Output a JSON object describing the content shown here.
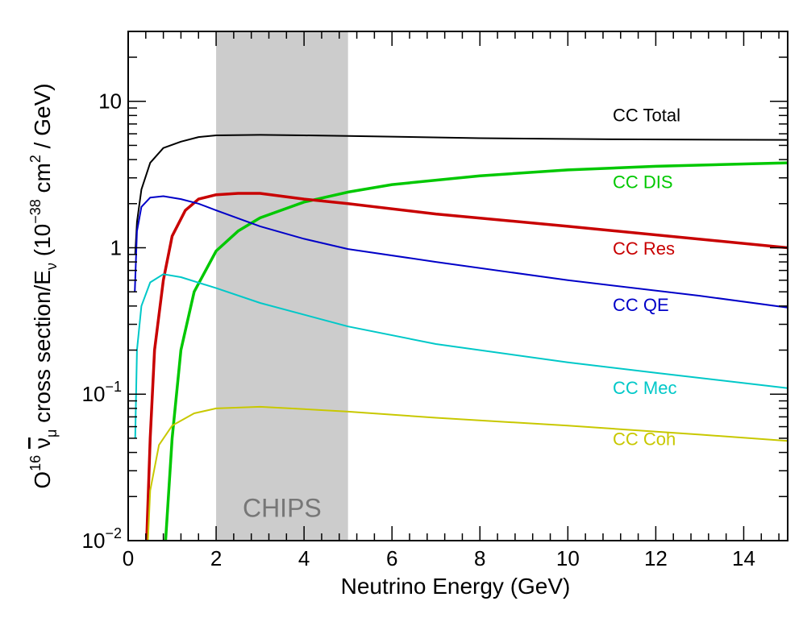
{
  "chart_data": {
    "type": "line",
    "xlabel": "Neutrino Energy (GeV)",
    "ylabel": {
      "main": "O",
      "sup1": "16",
      "nu": "ν",
      "nu_sub": "μ",
      "mid": " cross section/E",
      "e_sub": "ν",
      "units_a": " (10",
      "sup2": "−38",
      "units_b": " cm",
      "sup3": "2",
      "units_c": " / GeV)"
    },
    "xlim": [
      0,
      15
    ],
    "ylim": [
      0.01,
      30
    ],
    "yscale": "log",
    "grid": false,
    "x_ticks": [
      "0",
      "2",
      "4",
      "6",
      "8",
      "10",
      "12",
      "14"
    ],
    "y_ticks": [
      {
        "base": "10",
        "exp": "−2",
        "value": 0.01
      },
      {
        "base": "10",
        "exp": "−1",
        "value": 0.1
      },
      {
        "base": "1",
        "exp": "",
        "value": 1
      },
      {
        "base": "10",
        "exp": "",
        "value": 10
      }
    ],
    "band": {
      "label": "CHIPS",
      "x_range": [
        2,
        5
      ],
      "color": "#cccccc"
    },
    "series": [
      {
        "name": "CC Total",
        "color": "#000000",
        "width": 2,
        "points": [
          [
            0.16,
            0.9
          ],
          [
            0.2,
            1.5
          ],
          [
            0.3,
            2.5
          ],
          [
            0.5,
            3.8
          ],
          [
            0.8,
            4.8
          ],
          [
            1.2,
            5.3
          ],
          [
            1.6,
            5.7
          ],
          [
            2,
            5.85
          ],
          [
            3,
            5.9
          ],
          [
            4,
            5.85
          ],
          [
            5,
            5.8
          ],
          [
            8,
            5.6
          ],
          [
            11,
            5.5
          ],
          [
            15,
            5.45
          ]
        ]
      },
      {
        "name": "CC DIS",
        "color": "#00c800",
        "width": 3.5,
        "points": [
          [
            0.85,
            0.01
          ],
          [
            1.0,
            0.05
          ],
          [
            1.2,
            0.2
          ],
          [
            1.5,
            0.5
          ],
          [
            2,
            0.95
          ],
          [
            2.5,
            1.3
          ],
          [
            3,
            1.6
          ],
          [
            4,
            2.05
          ],
          [
            5,
            2.4
          ],
          [
            6,
            2.7
          ],
          [
            8,
            3.1
          ],
          [
            10,
            3.4
          ],
          [
            12,
            3.6
          ],
          [
            15,
            3.8
          ]
        ]
      },
      {
        "name": "CC Res",
        "color": "#c80000",
        "width": 3.5,
        "points": [
          [
            0.42,
            0.01
          ],
          [
            0.5,
            0.05
          ],
          [
            0.6,
            0.2
          ],
          [
            0.8,
            0.6
          ],
          [
            1.0,
            1.2
          ],
          [
            1.3,
            1.8
          ],
          [
            1.6,
            2.15
          ],
          [
            2,
            2.3
          ],
          [
            2.5,
            2.35
          ],
          [
            3,
            2.35
          ],
          [
            4,
            2.15
          ],
          [
            5,
            2.0
          ],
          [
            7,
            1.7
          ],
          [
            10,
            1.4
          ],
          [
            15,
            1.0
          ]
        ]
      },
      {
        "name": "CC QE",
        "color": "#0000c8",
        "width": 2,
        "points": [
          [
            0.15,
            0.5
          ],
          [
            0.2,
            1.3
          ],
          [
            0.3,
            1.9
          ],
          [
            0.5,
            2.2
          ],
          [
            0.8,
            2.25
          ],
          [
            1.2,
            2.15
          ],
          [
            1.6,
            2.0
          ],
          [
            2,
            1.8
          ],
          [
            3,
            1.4
          ],
          [
            4,
            1.15
          ],
          [
            5,
            0.98
          ],
          [
            7,
            0.8
          ],
          [
            10,
            0.6
          ],
          [
            13,
            0.47
          ],
          [
            15,
            0.39
          ]
        ]
      },
      {
        "name": "CC Mec",
        "color": "#00c8c8",
        "width": 2,
        "points": [
          [
            0.16,
            0.05
          ],
          [
            0.2,
            0.2
          ],
          [
            0.3,
            0.4
          ],
          [
            0.5,
            0.58
          ],
          [
            0.8,
            0.66
          ],
          [
            1.2,
            0.63
          ],
          [
            2,
            0.53
          ],
          [
            3,
            0.42
          ],
          [
            5,
            0.29
          ],
          [
            7,
            0.22
          ],
          [
            10,
            0.165
          ],
          [
            12,
            0.14
          ],
          [
            15,
            0.11
          ]
        ]
      },
      {
        "name": "CC Coh",
        "color": "#c8c800",
        "width": 2,
        "points": [
          [
            0.45,
            0.01
          ],
          [
            0.5,
            0.022
          ],
          [
            0.7,
            0.045
          ],
          [
            1,
            0.061
          ],
          [
            1.5,
            0.074
          ],
          [
            2,
            0.08
          ],
          [
            3,
            0.082
          ],
          [
            4,
            0.079
          ],
          [
            5,
            0.076
          ],
          [
            7,
            0.069
          ],
          [
            10,
            0.061
          ],
          [
            13,
            0.053
          ],
          [
            15,
            0.048
          ]
        ]
      }
    ],
    "labels": [
      {
        "text": "CC Total",
        "color": "#000000",
        "y_value": 7.3
      },
      {
        "text": "CC DIS",
        "color": "#00c800",
        "y_value": 2.55
      },
      {
        "text": "CC Res",
        "color": "#c80000",
        "y_value": 0.9
      },
      {
        "text": "CC QE",
        "color": "#0000c8",
        "y_value": 0.37
      },
      {
        "text": "CC Mec",
        "color": "#00c8c8",
        "y_value": 0.1
      },
      {
        "text": "CC Coh",
        "color": "#c8c800",
        "y_value": 0.045
      }
    ]
  }
}
